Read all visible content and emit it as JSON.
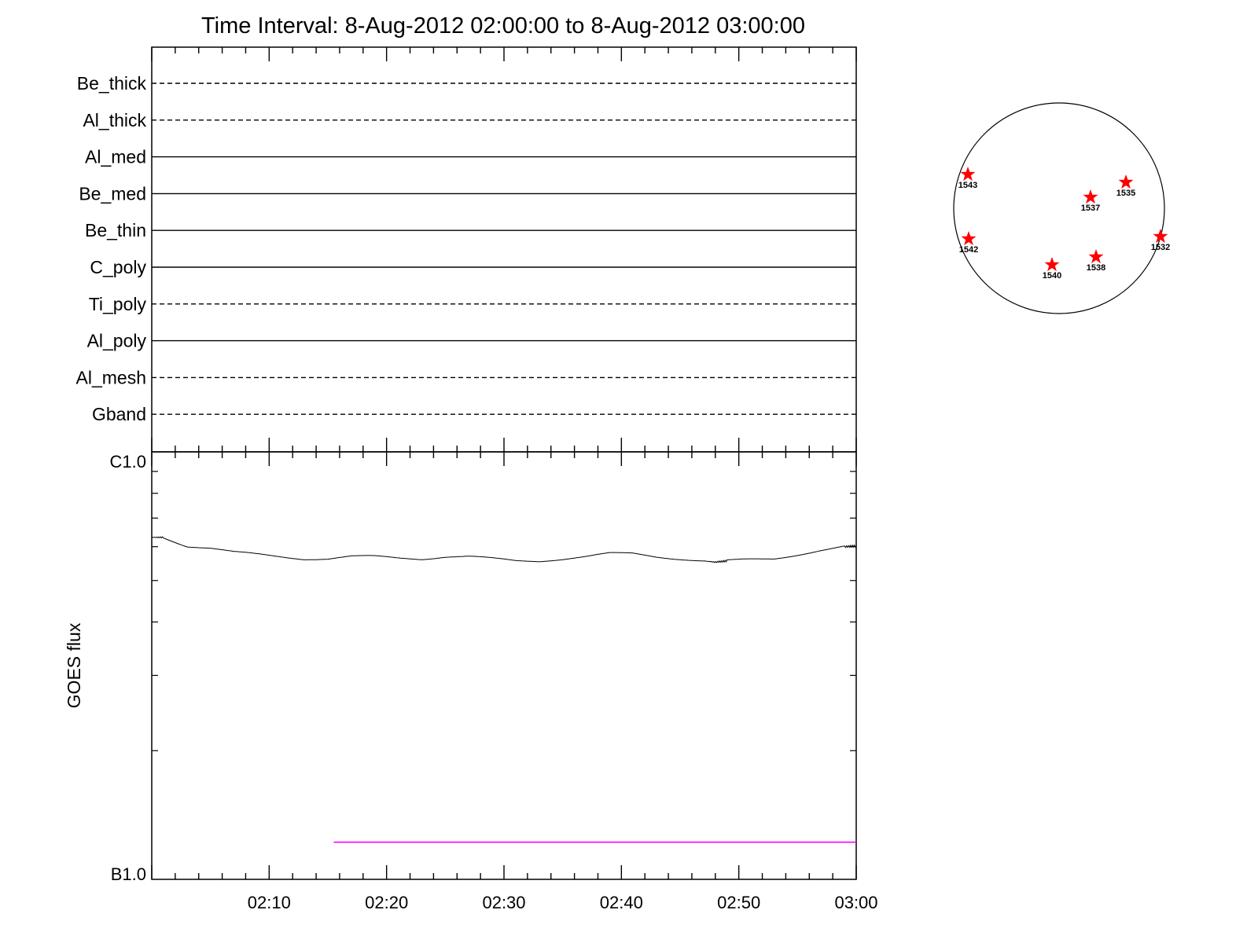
{
  "chart_data": [
    {
      "type": "line",
      "title": "Time Interval:  8-Aug-2012 02:00:00 to  8-Aug-2012 03:00:00",
      "xrange": [
        "02:00",
        "03:00"
      ],
      "channels": [
        {
          "name": "Be_thick",
          "style": "dashed"
        },
        {
          "name": "Al_thick",
          "style": "dashed"
        },
        {
          "name": "Al_med",
          "style": "solid"
        },
        {
          "name": "Be_med",
          "style": "solid"
        },
        {
          "name": "Be_thin",
          "style": "solid"
        },
        {
          "name": "C_poly",
          "style": "solid"
        },
        {
          "name": "Ti_poly",
          "style": "dashed"
        },
        {
          "name": "Al_poly",
          "style": "solid"
        },
        {
          "name": "Al_mesh",
          "style": "dashed"
        },
        {
          "name": "Gband",
          "style": "dashed"
        }
      ]
    },
    {
      "type": "line",
      "ylabel": "GOES flux",
      "yscale": "log",
      "ylim": [
        "B1.0",
        "C1.0"
      ],
      "ytick_labels": {
        "top": "C1.0",
        "bottom": "B1.0"
      },
      "xticks": [
        "02:10",
        "02:20",
        "02:30",
        "02:40",
        "02:50",
        "03:00"
      ],
      "series": [
        {
          "color": "#000000",
          "unit_note": "x in minutes after 02:00, y as fraction of log decade B1.0–C1.0",
          "x": [
            0,
            1,
            3,
            5,
            7,
            9,
            11,
            13,
            15,
            17,
            19,
            21,
            23,
            25,
            27,
            29,
            31,
            33,
            35,
            37,
            39,
            41,
            43,
            45,
            47,
            48,
            49,
            51,
            53,
            55,
            57,
            59,
            60
          ],
          "y": [
            0.8,
            0.8,
            0.78,
            0.775,
            0.765,
            0.76,
            0.755,
            0.75,
            0.75,
            0.755,
            0.755,
            0.752,
            0.75,
            0.755,
            0.755,
            0.75,
            0.745,
            0.745,
            0.75,
            0.755,
            0.762,
            0.762,
            0.755,
            0.75,
            0.745,
            0.742,
            0.745,
            0.748,
            0.75,
            0.76,
            0.77,
            0.778,
            0.78
          ]
        },
        {
          "color": "#ff00ff",
          "x": [
            15.5,
            60
          ],
          "y": [
            0.087,
            0.087
          ]
        }
      ]
    },
    {
      "type": "scatter",
      "marker": "star",
      "marker_color": "#ff0000",
      "points": [
        {
          "label": "1543"
        },
        {
          "label": "1535"
        },
        {
          "label": "1537"
        },
        {
          "label": "1542"
        },
        {
          "label": "1532"
        },
        {
          "label": "1538"
        },
        {
          "label": "1540"
        }
      ]
    }
  ]
}
